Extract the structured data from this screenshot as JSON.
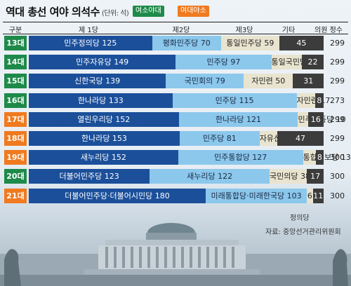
{
  "header": {
    "title": "역대 총선 여야 의석수",
    "unit": "(단위: 석)",
    "legend_ruling": "여소야대",
    "legend_opp": "여대야소",
    "col_era": "구분",
    "col_p1": "제 1당",
    "col_p2": "제2당",
    "col_p3": "제3당",
    "col_other": "기타",
    "col_total": "의원 정수"
  },
  "source": "자료: 중앙선거관리위원회",
  "footnote": "정의당",
  "colors": {
    "ruling": "#1e8a4a",
    "opp": "#f07a1f",
    "p1": "#1b4f9a",
    "p2": "#8cc7ec",
    "p3": "#e8e4cf",
    "other": "#3c3c3c"
  },
  "chart_data": {
    "type": "bar",
    "stacked": true,
    "categories": [
      "13대",
      "14대",
      "15대",
      "16대",
      "17대",
      "18대",
      "19대",
      "20대",
      "21대"
    ],
    "rows": [
      {
        "era": "13대",
        "status": "ruling",
        "total": "299",
        "segs": [
          {
            "label": "민주정의당 125",
            "v": 125
          },
          {
            "label": "평화민주당 70",
            "v": 70
          },
          {
            "label": "통일민주당 59",
            "v": 59
          },
          {
            "label": "45",
            "v": 45
          }
        ]
      },
      {
        "era": "14대",
        "status": "ruling",
        "total": "299",
        "segs": [
          {
            "label": "민주자유당 149",
            "v": 149
          },
          {
            "label": "민주당 97",
            "v": 97
          },
          {
            "label": "통일국민당 31",
            "v": 31
          },
          {
            "label": "22",
            "v": 22
          }
        ]
      },
      {
        "era": "15대",
        "status": "ruling",
        "total": "299",
        "segs": [
          {
            "label": "신한국당 139",
            "v": 139
          },
          {
            "label": "국민회의 79",
            "v": 79
          },
          {
            "label": "자민련 50",
            "v": 50
          },
          {
            "label": "31",
            "v": 31
          }
        ]
      },
      {
        "era": "16대",
        "status": "ruling",
        "total": "273",
        "segs": [
          {
            "label": "한나라당 133",
            "v": 133
          },
          {
            "label": "민주당 115",
            "v": 115
          },
          {
            "label": "자민련 17",
            "v": 17
          },
          {
            "label": "8",
            "v": 8
          }
        ]
      },
      {
        "era": "17대",
        "status": "opp",
        "total": "299",
        "segs": [
          {
            "label": "열린우리당 152",
            "v": 152
          },
          {
            "label": "한나라당 121",
            "v": 121
          },
          {
            "label": "민주노동당 10",
            "v": 10
          },
          {
            "label": "16",
            "v": 16
          }
        ]
      },
      {
        "era": "18대",
        "status": "opp",
        "total": "299",
        "segs": [
          {
            "label": "한나라당 153",
            "v": 153
          },
          {
            "label": "민주당 81",
            "v": 81
          },
          {
            "label": "자유선진당 18",
            "v": 18
          },
          {
            "label": "47",
            "v": 47
          }
        ]
      },
      {
        "era": "19대",
        "status": "opp",
        "total": "300",
        "segs": [
          {
            "label": "새누리당 152",
            "v": 152
          },
          {
            "label": "민주통합당 127",
            "v": 127
          },
          {
            "label": "통합진보당 13",
            "v": 13
          },
          {
            "label": "8",
            "v": 8
          }
        ]
      },
      {
        "era": "20대",
        "status": "ruling",
        "total": "300",
        "segs": [
          {
            "label": "더불어민주당 123",
            "v": 123
          },
          {
            "label": "새누리당 122",
            "v": 122
          },
          {
            "label": "국민의당 38",
            "v": 38
          },
          {
            "label": "17",
            "v": 17
          }
        ]
      },
      {
        "era": "21대",
        "status": "opp",
        "total": "300",
        "segs": [
          {
            "label": "더불어민주당·더불어시민당 180",
            "v": 180
          },
          {
            "label": "미래통합당·미래한국당 103",
            "v": 103
          },
          {
            "label": "6",
            "v": 6
          },
          {
            "label": "11",
            "v": 11
          }
        ]
      }
    ]
  }
}
